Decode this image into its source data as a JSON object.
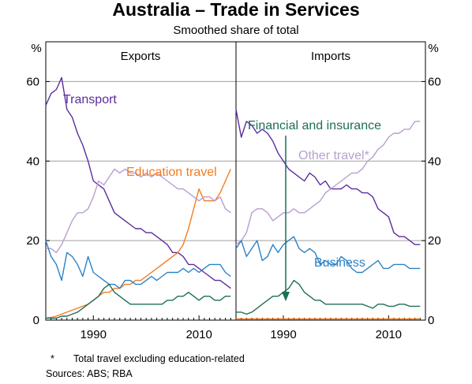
{
  "title": "Australia – Trade in Services",
  "subtitle": "Smoothed share of total",
  "y_unit": "%",
  "footnote_symbol": "*",
  "footnote_text": "Total travel excluding education-related",
  "sources": "Sources:   ABS; RBA",
  "colors": {
    "transport": "#5b2c9e",
    "education": "#f47b20",
    "travel": "#b89fd0",
    "business": "#2b82c6",
    "financial": "#1d6f56",
    "grid": "#a0a0a0"
  },
  "chart_data": [
    {
      "type": "line",
      "panel": "Exports",
      "xlim": [
        1981,
        2017
      ],
      "ylim": [
        0,
        70
      ],
      "x_ticks": [
        1990,
        2010
      ],
      "y_ticks": [
        0,
        20,
        40,
        60
      ],
      "grid": "horizontal",
      "series": [
        {
          "name": "Transport",
          "color_key": "transport",
          "x": [
            1981,
            1982,
            1983,
            1984,
            1985,
            1986,
            1987,
            1988,
            1989,
            1990,
            1991,
            1992,
            1993,
            1994,
            1995,
            1996,
            1997,
            1998,
            1999,
            2000,
            2001,
            2002,
            2003,
            2004,
            2005,
            2006,
            2007,
            2008,
            2009,
            2010,
            2011,
            2012,
            2013,
            2014,
            2015,
            2016
          ],
          "y": [
            54,
            57,
            58,
            61,
            53,
            51,
            47,
            44,
            40,
            35,
            34,
            33,
            30,
            27,
            26,
            25,
            24,
            23,
            23,
            22,
            22,
            21,
            20,
            19,
            17,
            17,
            16,
            14,
            14,
            13,
            12,
            11,
            10,
            10,
            9,
            8
          ]
        },
        {
          "name": "Education travel",
          "color_key": "education",
          "x": [
            1981,
            1982,
            1983,
            1984,
            1985,
            1986,
            1987,
            1988,
            1989,
            1990,
            1991,
            1992,
            1993,
            1994,
            1995,
            1996,
            1997,
            1998,
            1999,
            2000,
            2001,
            2002,
            2003,
            2004,
            2005,
            2006,
            2007,
            2008,
            2009,
            2010,
            2011,
            2012,
            2013,
            2014,
            2015,
            2016
          ],
          "y": [
            0.5,
            0.7,
            1,
            1.5,
            2,
            2.5,
            3,
            3.5,
            4,
            5,
            6,
            7,
            7,
            8,
            8,
            9,
            9,
            10,
            10,
            11,
            12,
            13,
            14,
            15,
            16,
            17,
            19,
            23,
            28,
            33,
            30,
            30,
            30,
            32,
            35,
            38
          ]
        },
        {
          "name": "Other travel*",
          "color_key": "travel",
          "x": [
            1981,
            1982,
            1983,
            1984,
            1985,
            1986,
            1987,
            1988,
            1989,
            1990,
            1991,
            1992,
            1993,
            1994,
            1995,
            1996,
            1997,
            1998,
            1999,
            2000,
            2001,
            2002,
            2003,
            2004,
            2005,
            2006,
            2007,
            2008,
            2009,
            2010,
            2011,
            2012,
            2013,
            2014,
            2015,
            2016
          ],
          "y": [
            18,
            18,
            17,
            19,
            22,
            25,
            27,
            27,
            28,
            31,
            35,
            34,
            36,
            38,
            37,
            38,
            37,
            37,
            36,
            37,
            36,
            37,
            36,
            35,
            34,
            33,
            33,
            32,
            31,
            30,
            31,
            31,
            30,
            31,
            28,
            27
          ]
        },
        {
          "name": "Business",
          "color_key": "business",
          "x": [
            1981,
            1982,
            1983,
            1984,
            1985,
            1986,
            1987,
            1988,
            1989,
            1990,
            1991,
            1992,
            1993,
            1994,
            1995,
            1996,
            1997,
            1998,
            1999,
            2000,
            2001,
            2002,
            2003,
            2004,
            2005,
            2006,
            2007,
            2008,
            2009,
            2010,
            2011,
            2012,
            2013,
            2014,
            2015,
            2016
          ],
          "y": [
            20,
            16,
            14,
            10,
            17,
            16,
            14,
            11,
            16,
            12,
            11,
            10,
            9,
            9,
            8,
            10,
            10,
            9,
            9,
            10,
            11,
            10,
            11,
            12,
            12,
            12,
            13,
            12,
            13,
            12,
            13,
            14,
            14,
            14,
            12,
            11
          ]
        },
        {
          "name": "Financial and insurance",
          "color_key": "financial",
          "x": [
            1981,
            1982,
            1983,
            1984,
            1985,
            1986,
            1987,
            1988,
            1989,
            1990,
            1991,
            1992,
            1993,
            1994,
            1995,
            1996,
            1997,
            1998,
            1999,
            2000,
            2001,
            2002,
            2003,
            2004,
            2005,
            2006,
            2007,
            2008,
            2009,
            2010,
            2011,
            2012,
            2013,
            2014,
            2015,
            2016
          ],
          "y": [
            0.5,
            0.5,
            0.5,
            1,
            1,
            1.5,
            2,
            3,
            4,
            5,
            6,
            8,
            9,
            7,
            6,
            5,
            4,
            4,
            4,
            4,
            4,
            4,
            4,
            5,
            5,
            6,
            6,
            7,
            6,
            5,
            6,
            6,
            5,
            5,
            6,
            6
          ]
        }
      ]
    },
    {
      "type": "line",
      "panel": "Imports",
      "xlim": [
        1981,
        2017
      ],
      "ylim": [
        0,
        70
      ],
      "x_ticks": [
        1990,
        2010
      ],
      "y_ticks": [
        0,
        20,
        40,
        60
      ],
      "grid": "horizontal",
      "series": [
        {
          "name": "Transport",
          "color_key": "transport",
          "x": [
            1981,
            1982,
            1983,
            1984,
            1985,
            1986,
            1987,
            1988,
            1989,
            1990,
            1991,
            1992,
            1993,
            1994,
            1995,
            1996,
            1997,
            1998,
            1999,
            2000,
            2001,
            2002,
            2003,
            2004,
            2005,
            2006,
            2007,
            2008,
            2009,
            2010,
            2011,
            2012,
            2013,
            2014,
            2015,
            2016
          ],
          "y": [
            53,
            46,
            50,
            49,
            47,
            48,
            47,
            45,
            42,
            40,
            38,
            37,
            36,
            35,
            37,
            36,
            34,
            35,
            33,
            33,
            33,
            34,
            33,
            33,
            32,
            32,
            31,
            28,
            27,
            26,
            22,
            21,
            21,
            20,
            19,
            19
          ]
        },
        {
          "name": "Other travel*",
          "color_key": "travel",
          "x": [
            1981,
            1982,
            1983,
            1984,
            1985,
            1986,
            1987,
            1988,
            1989,
            1990,
            1991,
            1992,
            1993,
            1994,
            1995,
            1996,
            1997,
            1998,
            1999,
            2000,
            2001,
            2002,
            2003,
            2004,
            2005,
            2006,
            2007,
            2008,
            2009,
            2010,
            2011,
            2012,
            2013,
            2014,
            2015,
            2016
          ],
          "y": [
            19,
            20,
            22,
            27,
            28,
            28,
            27,
            25,
            26,
            27,
            27,
            28,
            27,
            27,
            28,
            29,
            30,
            32,
            33,
            34,
            35,
            36,
            37,
            37,
            38,
            40,
            41,
            43,
            44,
            46,
            47,
            47,
            48,
            48,
            50,
            50
          ]
        },
        {
          "name": "Business",
          "color_key": "business",
          "x": [
            1981,
            1982,
            1983,
            1984,
            1985,
            1986,
            1987,
            1988,
            1989,
            1990,
            1991,
            1992,
            1993,
            1994,
            1995,
            1996,
            1997,
            1998,
            1999,
            2000,
            2001,
            2002,
            2003,
            2004,
            2005,
            2006,
            2007,
            2008,
            2009,
            2010,
            2011,
            2012,
            2013,
            2014,
            2015,
            2016
          ],
          "y": [
            18,
            20,
            16,
            18,
            20,
            15,
            16,
            19,
            17,
            19,
            20,
            21,
            18,
            17,
            18,
            17,
            14,
            15,
            14,
            14,
            16,
            15,
            13,
            12,
            12,
            13,
            14,
            15,
            13,
            13,
            14,
            14,
            14,
            13,
            13,
            13
          ]
        },
        {
          "name": "Financial and insurance",
          "color_key": "financial",
          "x": [
            1981,
            1982,
            1983,
            1984,
            1985,
            1986,
            1987,
            1988,
            1989,
            1990,
            1991,
            1992,
            1993,
            1994,
            1995,
            1996,
            1997,
            1998,
            1999,
            2000,
            2001,
            2002,
            2003,
            2004,
            2005,
            2006,
            2007,
            2008,
            2009,
            2010,
            2011,
            2012,
            2013,
            2014,
            2015,
            2016
          ],
          "y": [
            2,
            2,
            1.5,
            2,
            3,
            4,
            5,
            6,
            6,
            7,
            8,
            10,
            9,
            7,
            6,
            5,
            5,
            4,
            4,
            4,
            4,
            4,
            4,
            4,
            4,
            3.5,
            3,
            4,
            4,
            3.5,
            3.5,
            4,
            4,
            3.5,
            3.5,
            3.5
          ]
        },
        {
          "name": "Education travel",
          "color_key": "education",
          "x": [
            1981,
            1990,
            2000,
            2010,
            2016
          ],
          "y": [
            0.3,
            0.3,
            0.3,
            0.3,
            0.3
          ]
        }
      ]
    }
  ],
  "annotations": {
    "transport": "Transport",
    "education": "Education travel",
    "financial": "Financial and insurance",
    "travel": "Other travel*",
    "business": "Business"
  }
}
